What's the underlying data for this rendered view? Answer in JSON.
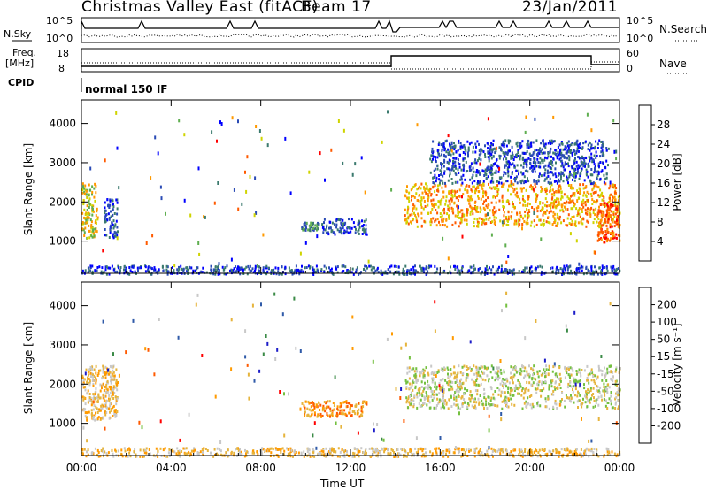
{
  "header": {
    "station": "Christmas Valley East (fitACF)",
    "beam": "Beam 17",
    "date": "23/Jan/2011",
    "left_top_label": "N.Sky",
    "right_top_label": "N.Search",
    "left_top_ticks": [
      "10^5",
      "10^0"
    ],
    "right_top_ticks": [
      "10^5",
      "10^0"
    ],
    "freq_label": "Freq.",
    "freq_unit": "[MHz]",
    "freq_ticks": [
      "18",
      "8"
    ],
    "nave_label": "Nave",
    "nave_ticks": [
      "60",
      "0"
    ],
    "cpid_label": "CPID",
    "cpid_value": "normal 150 IF"
  },
  "xaxis": {
    "label": "Time UT",
    "ticks": [
      "00:00",
      "04:00",
      "08:00",
      "12:00",
      "16:00",
      "20:00",
      "00:00"
    ]
  },
  "colors": {
    "power": [
      "#0000ff",
      "#2a4bb5",
      "#3b7a6e",
      "#5fae4f",
      "#cfd400",
      "#ff9900",
      "#ff5a00",
      "#ff0000"
    ],
    "velocity": [
      "#1c1cc8",
      "#2f5aa8",
      "#3a8a46",
      "#74c040",
      "#c8c8c8",
      "#e6b43c",
      "#ff9a00",
      "#ff5a00",
      "#ff0000"
    ]
  },
  "chart_data": [
    {
      "type": "heatmap",
      "title": "Power",
      "ylabel": "Slant Range [km]",
      "xlabel": "",
      "x_range_hours": [
        0,
        24
      ],
      "ylim": [
        180,
        4600
      ],
      "yticks": [
        "1000",
        "2000",
        "3000",
        "4000"
      ],
      "colorbar": {
        "label": "Power [dB]",
        "ticks": [
          "4",
          "8",
          "12",
          "16",
          "20",
          "24",
          "28"
        ],
        "range": [
          0,
          32
        ]
      },
      "echo_regions": [
        {
          "t": [
            0.0,
            0.7
          ],
          "range": [
            1100,
            2500
          ],
          "level": 4
        },
        {
          "t": [
            1.0,
            1.6
          ],
          "range": [
            1100,
            2100
          ],
          "level": 1
        },
        {
          "t": [
            9.8,
            10.6
          ],
          "range": [
            1300,
            1500
          ],
          "level": 2
        },
        {
          "t": [
            10.7,
            12.7
          ],
          "range": [
            1200,
            1600
          ],
          "level": 1
        },
        {
          "t": [
            14.4,
            24.0
          ],
          "range": [
            1400,
            2500
          ],
          "level": 5
        },
        {
          "t": [
            15.5,
            23.5
          ],
          "range": [
            2500,
            3600
          ],
          "level": 1
        },
        {
          "t": [
            23.0,
            24.0
          ],
          "range": [
            1000,
            2000
          ],
          "level": 6
        },
        {
          "t": [
            0.0,
            24.0
          ],
          "range": [
            180,
            400
          ],
          "level": 1
        }
      ]
    },
    {
      "type": "heatmap",
      "title": "Velocity",
      "ylabel": "Slant Range [km]",
      "xlabel": "Time UT",
      "x_range_hours": [
        0,
        24
      ],
      "ylim": [
        180,
        4600
      ],
      "yticks": [
        "1000",
        "2000",
        "3000",
        "4000"
      ],
      "colorbar": {
        "label": "Velocity [m s⁻¹]",
        "ticks": [
          "200",
          "100",
          "50",
          "15",
          "-15",
          "-50",
          "-100",
          "-200"
        ],
        "range": [
          -250,
          250
        ]
      },
      "echo_regions": [
        {
          "t": [
            0.0,
            1.6
          ],
          "range": [
            1100,
            2500
          ],
          "level": 5
        },
        {
          "t": [
            9.8,
            12.7
          ],
          "range": [
            1200,
            1600
          ],
          "level": 6
        },
        {
          "t": [
            14.4,
            24.0
          ],
          "range": [
            1400,
            2500
          ],
          "level": 4
        },
        {
          "t": [
            0.0,
            24.0
          ],
          "range": [
            180,
            400
          ],
          "level": 5
        }
      ]
    }
  ]
}
